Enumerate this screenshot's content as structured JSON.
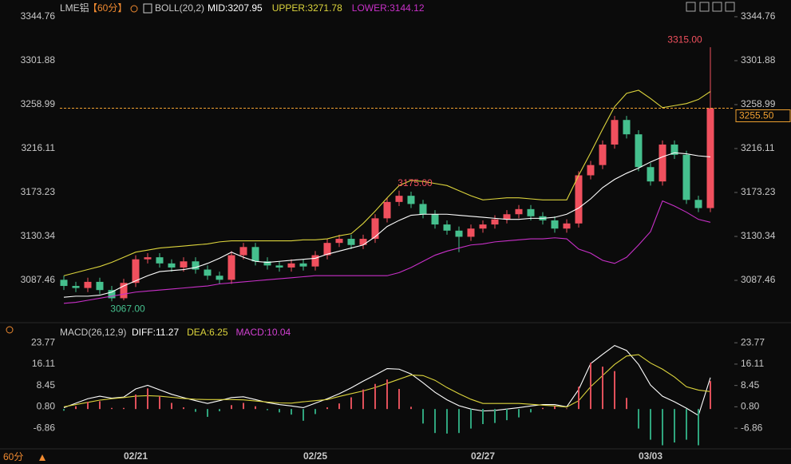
{
  "chart_data": [
    {
      "type": "candlestick",
      "title": "LME铝",
      "period": "【60分】",
      "indicator": "BOLL(20,2)",
      "open": [
        3088,
        3082,
        3080,
        3086,
        3078,
        3070,
        3085,
        3108,
        3110,
        3104,
        3100,
        3106,
        3098,
        3092,
        3088,
        3112,
        3120,
        3106,
        3102,
        3100,
        3104,
        3101,
        3112,
        3124,
        3128,
        3122,
        3128,
        3148,
        3164,
        3170,
        3162,
        3152,
        3142,
        3136,
        3130,
        3138,
        3142,
        3147,
        3152,
        3157,
        3150,
        3146,
        3138,
        3143,
        3190,
        3200,
        3220,
        3244,
        3230,
        3198,
        3184,
        3220,
        3210,
        3166,
        3158
      ],
      "high": [
        3092,
        3086,
        3090,
        3090,
        3082,
        3089,
        3112,
        3114,
        3114,
        3108,
        3110,
        3110,
        3102,
        3096,
        3116,
        3124,
        3124,
        3110,
        3106,
        3108,
        3108,
        3116,
        3128,
        3132,
        3132,
        3132,
        3152,
        3168,
        3175,
        3174,
        3166,
        3156,
        3146,
        3140,
        3142,
        3146,
        3151,
        3156,
        3161,
        3161,
        3154,
        3150,
        3147,
        3194,
        3204,
        3224,
        3248,
        3248,
        3234,
        3202,
        3224,
        3224,
        3214,
        3170,
        3315
      ],
      "low": [
        3078,
        3076,
        3076,
        3074,
        3067,
        3068,
        3081,
        3104,
        3100,
        3096,
        3096,
        3094,
        3088,
        3084,
        3084,
        3108,
        3102,
        3098,
        3096,
        3096,
        3097,
        3097,
        3108,
        3120,
        3118,
        3118,
        3124,
        3144,
        3160,
        3158,
        3148,
        3138,
        3132,
        3115,
        3126,
        3134,
        3138,
        3143,
        3148,
        3146,
        3142,
        3134,
        3134,
        3139,
        3186,
        3196,
        3216,
        3226,
        3194,
        3180,
        3180,
        3206,
        3162,
        3154,
        3154
      ],
      "close": [
        3082,
        3080,
        3086,
        3078,
        3070,
        3085,
        3108,
        3110,
        3104,
        3100,
        3106,
        3098,
        3092,
        3088,
        3112,
        3120,
        3106,
        3102,
        3100,
        3104,
        3101,
        3112,
        3124,
        3128,
        3122,
        3128,
        3148,
        3164,
        3170,
        3162,
        3152,
        3142,
        3136,
        3130,
        3138,
        3142,
        3147,
        3152,
        3157,
        3150,
        3146,
        3138,
        3143,
        3190,
        3200,
        3220,
        3244,
        3230,
        3198,
        3184,
        3220,
        3210,
        3166,
        3158,
        3255.5
      ],
      "up_color": "#f0505e",
      "down_color": "#45c08e",
      "series": [
        {
          "name": "MID:3207.95",
          "color": "#ffffff",
          "values": [
            3071,
            3072,
            3072,
            3073,
            3076,
            3082,
            3087,
            3092,
            3096,
            3097,
            3098,
            3100,
            3104,
            3109,
            3115,
            3110,
            3106,
            3105,
            3106,
            3107,
            3108,
            3109,
            3113,
            3116,
            3119,
            3122,
            3130,
            3140,
            3146,
            3151,
            3152,
            3152,
            3152,
            3151,
            3150,
            3149,
            3148,
            3147,
            3147,
            3148,
            3148,
            3149,
            3152,
            3158,
            3167,
            3178,
            3186,
            3192,
            3197,
            3203,
            3208,
            3212,
            3211,
            3209,
            3207.95
          ]
        },
        {
          "name": "UPPER:3271.78",
          "color": "#dcd43c",
          "values": [
            3092,
            3095,
            3098,
            3101,
            3105,
            3110,
            3115,
            3117,
            3119,
            3120,
            3121,
            3122,
            3123,
            3125,
            3126,
            3126,
            3126,
            3126,
            3126,
            3126,
            3127,
            3127,
            3128,
            3131,
            3133,
            3143,
            3155,
            3168,
            3180,
            3185,
            3184,
            3182,
            3180,
            3175,
            3170,
            3166,
            3167,
            3168,
            3168,
            3167,
            3166,
            3166,
            3166,
            3190,
            3212,
            3235,
            3257,
            3270,
            3273,
            3265,
            3256,
            3258,
            3260,
            3264,
            3271.78
          ]
        },
        {
          "name": "LOWER:3144.12",
          "color": "#c830c8",
          "values": [
            3065,
            3066,
            3068,
            3070,
            3072,
            3074,
            3076,
            3077,
            3078,
            3079,
            3080,
            3081,
            3082,
            3084,
            3085,
            3086,
            3087,
            3088,
            3089,
            3090,
            3091,
            3092,
            3092,
            3092,
            3092,
            3092,
            3092,
            3092,
            3095,
            3100,
            3106,
            3112,
            3116,
            3119,
            3122,
            3123,
            3125,
            3126,
            3127,
            3128,
            3128,
            3129,
            3128,
            3118,
            3114,
            3107,
            3104,
            3110,
            3122,
            3135,
            3165,
            3160,
            3154,
            3147,
            3144.12
          ]
        }
      ],
      "ylim": [
        3049.3,
        3357.2
      ],
      "yticks": [
        3344.76,
        3301.88,
        3258.99,
        3216.11,
        3173.23,
        3130.34,
        3087.46
      ],
      "last_price": {
        "value": 3255.5,
        "label": "3255.50"
      },
      "last_price_color": "#f0a030",
      "annotations": [
        {
          "value": 3315,
          "label": "3315.00"
        },
        {
          "value": 3175,
          "label": "3175.00"
        },
        {
          "value": 3067,
          "label": "3067.00"
        }
      ]
    },
    {
      "type": "combo",
      "title": "MACD(26,12,9)",
      "categories": [
        null,
        null,
        null,
        null,
        null,
        null,
        "02/21",
        null,
        null,
        null,
        null,
        null,
        null,
        null,
        null,
        null,
        null,
        null,
        null,
        null,
        null,
        "02/25",
        null,
        null,
        null,
        null,
        null,
        null,
        null,
        null,
        null,
        null,
        null,
        null,
        null,
        "02/27",
        null,
        null,
        null,
        null,
        null,
        null,
        null,
        null,
        null,
        null,
        null,
        null,
        null,
        "03/03",
        null,
        null,
        null,
        null,
        null
      ],
      "series": [
        {
          "name": "DIFF:11.27",
          "color": "#ffffff",
          "values": [
            0.5,
            2.1,
            3.7,
            4.6,
            3.9,
            4.3,
            7.2,
            8.5,
            6.9,
            5.3,
            4.1,
            3.0,
            2.0,
            3.0,
            4.1,
            4.4,
            3.4,
            2.3,
            1.6,
            1.1,
            0.5,
            2.1,
            3.7,
            5.5,
            7.6,
            10.0,
            12.2,
            14.5,
            14.3,
            12.6,
            9.4,
            6.0,
            3.3,
            1.2,
            0.0,
            -0.7,
            -0.5,
            0.0,
            0.5,
            1.1,
            1.6,
            1.6,
            0.8,
            7.0,
            16.3,
            19.6,
            22.8,
            21.0,
            16.0,
            8.6,
            4.6,
            2.6,
            0.3,
            -2.3,
            11.27
          ]
        },
        {
          "name": "DEA:6.25",
          "color": "#dcd43c",
          "values": [
            0.8,
            1.6,
            2.4,
            3.2,
            3.7,
            4.1,
            4.6,
            4.8,
            4.6,
            4.2,
            3.8,
            3.5,
            3.4,
            3.4,
            3.4,
            3.3,
            2.9,
            2.5,
            2.2,
            2.1,
            2.6,
            3.0,
            3.4,
            4.5,
            5.5,
            6.5,
            7.7,
            9.2,
            10.7,
            12.2,
            12.0,
            10.3,
            7.7,
            5.5,
            3.5,
            2.0,
            2.0,
            2.0,
            2.0,
            1.7,
            1.4,
            1.1,
            0.7,
            3.0,
            8.0,
            12.0,
            16.0,
            19.0,
            19.5,
            16.5,
            14.3,
            11.5,
            8.0,
            6.8,
            6.25
          ]
        },
        {
          "name": "MACD:10.04",
          "color": "#d040d0",
          "type": "bar",
          "up_color": "#e0505a",
          "down_color": "#2fa57d",
          "values": [
            -0.6,
            1.0,
            2.6,
            2.8,
            0.4,
            0.4,
            5.2,
            7.4,
            4.6,
            2.2,
            0.6,
            -1.0,
            -2.8,
            -0.8,
            1.4,
            2.2,
            1.0,
            -0.4,
            -1.2,
            -2.0,
            -4.2,
            -1.8,
            0.6,
            2.0,
            4.2,
            7.0,
            9.0,
            10.6,
            7.2,
            0.8,
            -5.2,
            -8.6,
            -8.8,
            -8.6,
            -7.0,
            -5.4,
            -5.0,
            -4.0,
            -3.0,
            -1.2,
            0.4,
            1.0,
            0.2,
            8.0,
            16.6,
            15.2,
            13.6,
            4.0,
            -7.0,
            -11,
            -13,
            -12,
            -11,
            -13,
            10.04
          ]
        }
      ],
      "ylim": [
        -13.7,
        26.4
      ],
      "yticks": [
        23.77,
        16.11,
        8.45,
        {
          "value": 0.8,
          "label": "0.80"
        },
        -6.86
      ]
    }
  ],
  "footer": {
    "period": "60分"
  }
}
